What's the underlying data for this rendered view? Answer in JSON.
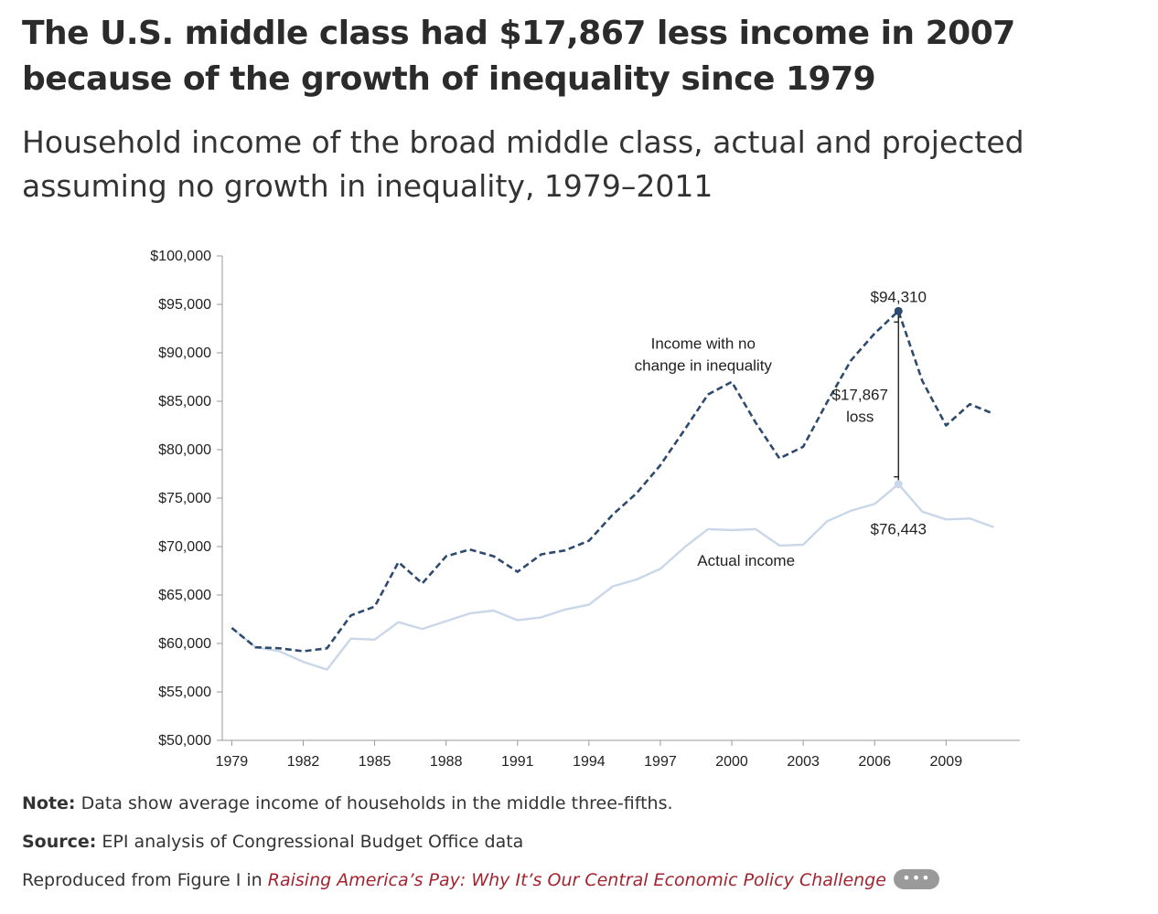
{
  "title": "The U.S. middle class had $17,867 less income in 2007 because of the growth of inequality since 1979",
  "subtitle": "Household income of the broad middle class, actual and projected assuming no growth in inequality, 1979–2011",
  "notes": {
    "note_label": "Note:",
    "note_text": " Data show average income of households in the middle three-fifths.",
    "source_label": "Source:",
    "source_text": " EPI analysis of Congressional Budget Office data",
    "repro_prefix": "Reproduced from Figure I in ",
    "repro_link": "Raising America’s Pay: Why It’s Our Central Economic Policy Challenge",
    "more_label": "•••"
  },
  "chart_data": {
    "type": "line",
    "x": [
      1979,
      1980,
      1981,
      1982,
      1983,
      1984,
      1985,
      1986,
      1987,
      1988,
      1989,
      1990,
      1991,
      1992,
      1993,
      1994,
      1995,
      1996,
      1997,
      1998,
      1999,
      2000,
      2001,
      2002,
      2003,
      2004,
      2005,
      2006,
      2007,
      2008,
      2009,
      2010,
      2011
    ],
    "x_ticks": [
      1979,
      1982,
      1985,
      1988,
      1991,
      1994,
      1997,
      2000,
      2003,
      2006,
      2009
    ],
    "x_tick_labels": [
      "1979",
      "1982",
      "1985",
      "1988",
      "1991",
      "1994",
      "1997",
      "2000",
      "2003",
      "2006",
      "2009"
    ],
    "ylim": [
      50000,
      100000
    ],
    "y_ticks": [
      50000,
      55000,
      60000,
      65000,
      70000,
      75000,
      80000,
      85000,
      90000,
      95000,
      100000
    ],
    "y_tick_labels": [
      "$50,000",
      "$55,000",
      "$60,000",
      "$65,000",
      "$70,000",
      "$75,000",
      "$80,000",
      "$85,000",
      "$90,000",
      "$95,000",
      "$100,000"
    ],
    "grid": false,
    "series": [
      {
        "name": "Income with no change in inequality",
        "style": "dashed",
        "color": "#2e4a6e",
        "values": [
          61600,
          59600,
          59500,
          59200,
          59500,
          62900,
          63800,
          68400,
          66200,
          69000,
          69700,
          69000,
          67400,
          69200,
          69600,
          70600,
          73300,
          75500,
          78400,
          82000,
          85700,
          87000,
          82800,
          79100,
          80300,
          84900,
          89200,
          92000,
          94310,
          87100,
          82500,
          84700,
          83700
        ]
      },
      {
        "name": "Actual income",
        "style": "solid",
        "color": "#c9d7e9",
        "values": [
          61600,
          59600,
          59200,
          58100,
          57300,
          60500,
          60400,
          62200,
          61500,
          62300,
          63100,
          63400,
          62400,
          62700,
          63500,
          64000,
          65900,
          66600,
          67700,
          69900,
          71800,
          71700,
          71800,
          70100,
          70200,
          72600,
          73700,
          74400,
          76443,
          73600,
          72800,
          72900,
          72000
        ]
      }
    ],
    "annotations": {
      "peak_label": "$94,310",
      "actual_peak_label": "$76,443",
      "gap_label_line1": "$17,867",
      "gap_label_line2": "loss",
      "projected_line1": "Income with no",
      "projected_line2": "change in inequality",
      "actual_label": "Actual income"
    },
    "highlight": {
      "year": 2007,
      "projected_value": 94310,
      "actual_value": 76443
    }
  }
}
